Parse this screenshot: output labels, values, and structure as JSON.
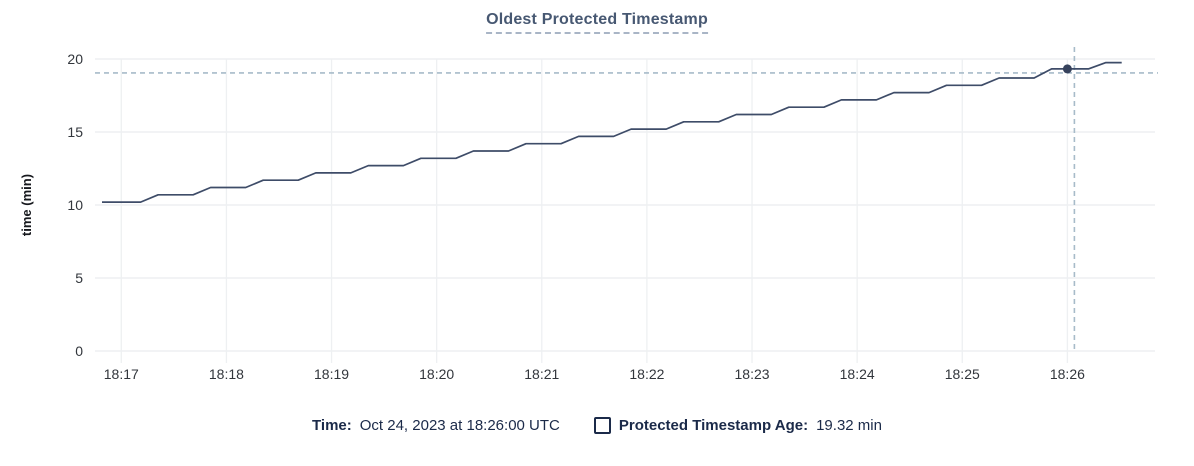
{
  "title": "Oldest Protected Timestamp",
  "chart_data": {
    "type": "line",
    "title": "Oldest Protected Timestamp",
    "xlabel": "",
    "ylabel": "time (min)",
    "ylim": [
      0,
      20
    ],
    "yticks": [
      0,
      5,
      10,
      15,
      20
    ],
    "xticks": [
      "18:17",
      "18:18",
      "18:19",
      "18:20",
      "18:21",
      "18:22",
      "18:23",
      "18:24",
      "18:25",
      "18:26"
    ],
    "x_domain": [
      "18:16:45",
      "18:26:50"
    ],
    "grid": true,
    "legend_position": "bottom",
    "series": [
      {
        "name": "Protected Timestamp Age",
        "unit": "min",
        "points": [
          [
            "18:16:49",
            10.2
          ],
          [
            "18:17:11",
            10.2
          ],
          [
            "18:17:21",
            10.7
          ],
          [
            "18:17:41",
            10.7
          ],
          [
            "18:17:51",
            11.2
          ],
          [
            "18:18:11",
            11.2
          ],
          [
            "18:18:21",
            11.7
          ],
          [
            "18:18:41",
            11.7
          ],
          [
            "18:18:51",
            12.2
          ],
          [
            "18:19:11",
            12.2
          ],
          [
            "18:19:21",
            12.7
          ],
          [
            "18:19:41",
            12.7
          ],
          [
            "18:19:51",
            13.2
          ],
          [
            "18:20:11",
            13.2
          ],
          [
            "18:20:21",
            13.7
          ],
          [
            "18:20:41",
            13.7
          ],
          [
            "18:20:51",
            14.2
          ],
          [
            "18:21:11",
            14.2
          ],
          [
            "18:21:21",
            14.7
          ],
          [
            "18:21:41",
            14.7
          ],
          [
            "18:21:51",
            15.2
          ],
          [
            "18:22:11",
            15.2
          ],
          [
            "18:22:21",
            15.7
          ],
          [
            "18:22:41",
            15.7
          ],
          [
            "18:22:51",
            16.2
          ],
          [
            "18:23:11",
            16.2
          ],
          [
            "18:23:21",
            16.7
          ],
          [
            "18:23:41",
            16.7
          ],
          [
            "18:23:51",
            17.2
          ],
          [
            "18:24:11",
            17.2
          ],
          [
            "18:24:21",
            17.7
          ],
          [
            "18:24:41",
            17.7
          ],
          [
            "18:24:51",
            18.2
          ],
          [
            "18:25:11",
            18.2
          ],
          [
            "18:25:21",
            18.7
          ],
          [
            "18:25:41",
            18.7
          ],
          [
            "18:25:51",
            19.32
          ],
          [
            "18:26:12",
            19.32
          ],
          [
            "18:26:22",
            19.75
          ],
          [
            "18:26:31",
            19.75
          ]
        ]
      }
    ],
    "highlight_point": {
      "time": "18:26:00",
      "value": 19.32
    }
  },
  "legend": {
    "time_label": "Time:",
    "time_value": "Oct 24, 2023 at 18:26:00 UTC",
    "checkbox_checked": false,
    "series_label": "Protected Timestamp Age:",
    "series_value": "19.32 min"
  },
  "colors": {
    "title": "#475872",
    "title_underline": "#a9b5c6",
    "line": "#3e4c68",
    "point": "#36425c",
    "crosshair": "#a7bbc9",
    "grid_h": "#e9ecef",
    "grid_v": "#eef0f2",
    "tick_text": "#32363c",
    "axis_title_text": "#16181d",
    "legend_text": "#1b2a49"
  }
}
